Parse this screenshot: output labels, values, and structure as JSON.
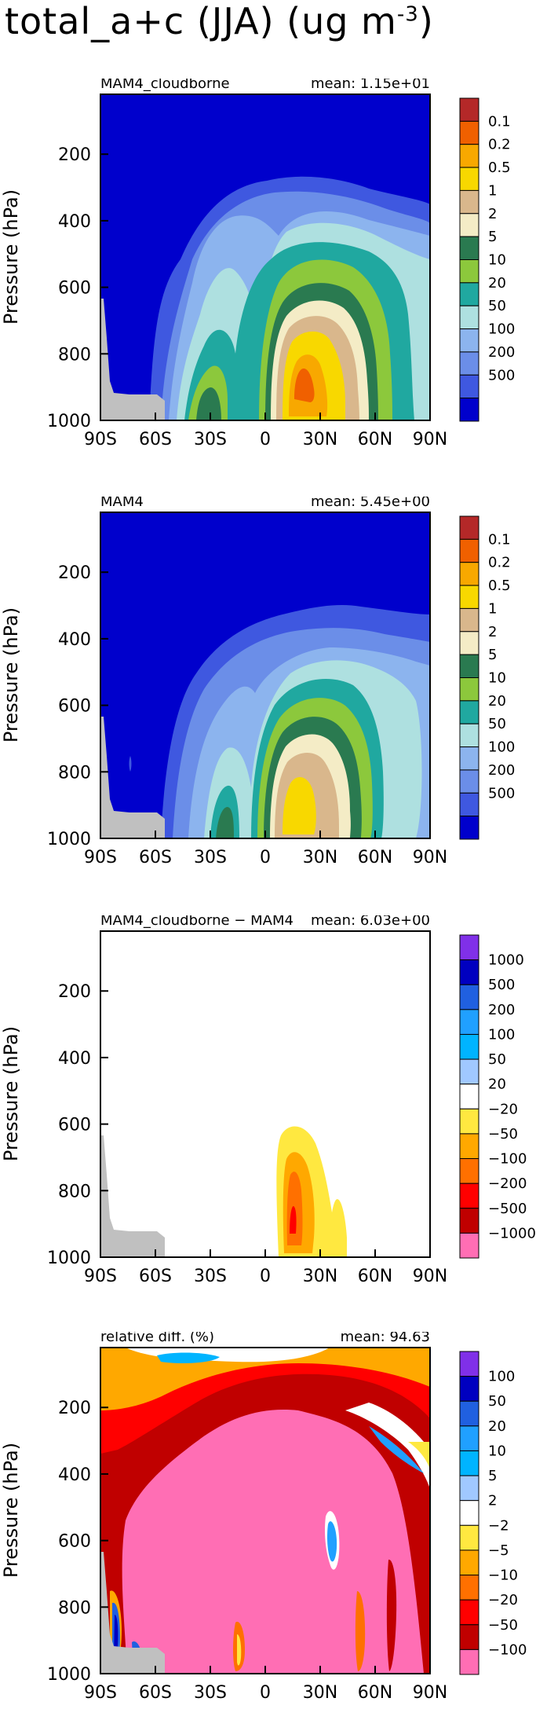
{
  "title": {
    "main": "total_a+c (JJA) (ug m",
    "sup": "-3",
    "close": ")"
  },
  "chart_data": [
    {
      "type": "contour",
      "title": "MAM4_cloudborne",
      "mean_label": "mean: 1.15e+01",
      "ylabel": "Pressure (hPa)",
      "xlabel": "",
      "x_ticks": [
        "90S",
        "60S",
        "30S",
        "0",
        "30N",
        "60N",
        "90N"
      ],
      "y_ticks": [
        "200",
        "400",
        "600",
        "800",
        "1000"
      ],
      "y_tick_values": [
        200,
        400,
        600,
        800,
        1000
      ],
      "ylim": [
        1000,
        20
      ],
      "xlim": [
        -90,
        90
      ],
      "levels": [
        "0.1",
        "0.2",
        "0.5",
        "1",
        "2",
        "5",
        "10",
        "20",
        "50",
        "100",
        "200",
        "500"
      ],
      "colors": [
        "#0000cc",
        "#3f58e0",
        "#6b8ee8",
        "#8cb4ee",
        "#aee0e0",
        "#20a8a0",
        "#8cc83c",
        "#2a7a50",
        "#f4ecc6",
        "#d9b78c",
        "#f8d800",
        "#f8a800",
        "#f06000",
        "#b42828"
      ]
    },
    {
      "type": "contour",
      "title": "MAM4",
      "mean_label": "mean: 5.45e+00",
      "ylabel": "Pressure (hPa)",
      "xlabel": "",
      "x_ticks": [
        "90S",
        "60S",
        "30S",
        "0",
        "30N",
        "60N",
        "90N"
      ],
      "y_ticks": [
        "200",
        "400",
        "600",
        "800",
        "1000"
      ],
      "y_tick_values": [
        200,
        400,
        600,
        800,
        1000
      ],
      "ylim": [
        1000,
        20
      ],
      "xlim": [
        -90,
        90
      ],
      "levels": [
        "0.1",
        "0.2",
        "0.5",
        "1",
        "2",
        "5",
        "10",
        "20",
        "50",
        "100",
        "200",
        "500"
      ],
      "colors": [
        "#0000cc",
        "#3f58e0",
        "#6b8ee8",
        "#8cb4ee",
        "#aee0e0",
        "#20a8a0",
        "#8cc83c",
        "#2a7a50",
        "#f4ecc6",
        "#d9b78c",
        "#f8d800",
        "#f8a800",
        "#f06000",
        "#b42828"
      ]
    },
    {
      "type": "contour",
      "title": "MAM4_cloudborne − MAM4",
      "mean_label": "mean: 6.03e+00",
      "ylabel": "Pressure (hPa)",
      "xlabel": "",
      "x_ticks": [
        "90S",
        "60S",
        "30S",
        "0",
        "30N",
        "60N",
        "90N"
      ],
      "y_ticks": [
        "200",
        "400",
        "600",
        "800",
        "1000"
      ],
      "y_tick_values": [
        200,
        400,
        600,
        800,
        1000
      ],
      "ylim": [
        1000,
        20
      ],
      "xlim": [
        -90,
        90
      ],
      "levels": [
        "1000",
        "500",
        "200",
        "100",
        "50",
        "20",
        "−20",
        "−50",
        "−100",
        "−200",
        "−500",
        "−1000"
      ],
      "colors": [
        "#ff6eb4",
        "#c00000",
        "#ff0000",
        "#ff7000",
        "#ffa800",
        "#ffe840",
        "#ffffff",
        "#a0c8ff",
        "#00b4ff",
        "#20a0ff",
        "#2060e0",
        "#0000c0",
        "#8030e8"
      ]
    },
    {
      "type": "contour",
      "title": "relative diff. (%)",
      "mean_label": "mean: 94.63",
      "ylabel": "Pressure (hPa)",
      "xlabel": "",
      "x_ticks": [
        "90S",
        "60S",
        "30S",
        "0",
        "30N",
        "60N",
        "90N"
      ],
      "y_ticks": [
        "200",
        "400",
        "600",
        "800",
        "1000"
      ],
      "y_tick_values": [
        200,
        400,
        600,
        800,
        1000
      ],
      "ylim": [
        1000,
        20
      ],
      "xlim": [
        -90,
        90
      ],
      "levels": [
        "100",
        "50",
        "20",
        "10",
        "5",
        "2",
        "−2",
        "−5",
        "−10",
        "−20",
        "−50",
        "−100"
      ],
      "colors": [
        "#ff6eb4",
        "#c00000",
        "#ff0000",
        "#ff7000",
        "#ffa800",
        "#ffe840",
        "#ffffff",
        "#a0c8ff",
        "#00b4ff",
        "#20a0ff",
        "#2060e0",
        "#0000c0",
        "#8030e8"
      ]
    }
  ]
}
